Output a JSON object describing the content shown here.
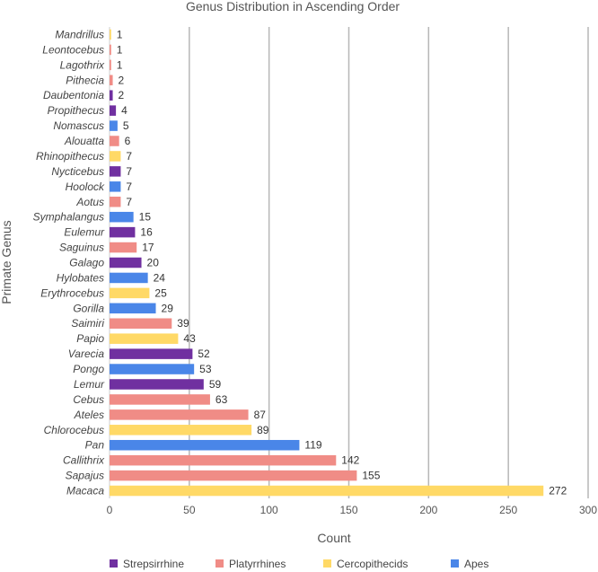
{
  "chart_data": {
    "type": "bar",
    "orientation": "horizontal",
    "title": "Genus Distribution in Ascending Order",
    "xlabel": "Count",
    "ylabel": "Primate Genus",
    "xlim": [
      0,
      300
    ],
    "xticks": [
      0,
      50,
      100,
      150,
      200,
      250,
      300
    ],
    "grid": "vertical",
    "legend_position": "bottom",
    "groups": [
      {
        "name": "Strepsirrhine",
        "color": "#7030a0"
      },
      {
        "name": "Platyrrhines",
        "color": "#f08c86"
      },
      {
        "name": "Cercopithecids",
        "color": "#ffd966"
      },
      {
        "name": "Apes",
        "color": "#4a86e8"
      }
    ],
    "bars": [
      {
        "label": "Mandrillus",
        "value": 1,
        "group": "Cercopithecids"
      },
      {
        "label": "Leontocebus",
        "value": 1,
        "group": "Platyrrhines"
      },
      {
        "label": "Lagothrix",
        "value": 1,
        "group": "Platyrrhines"
      },
      {
        "label": "Pithecia",
        "value": 2,
        "group": "Platyrrhines"
      },
      {
        "label": "Daubentonia",
        "value": 2,
        "group": "Strepsirrhine"
      },
      {
        "label": "Propithecus",
        "value": 4,
        "group": "Strepsirrhine"
      },
      {
        "label": "Nomascus",
        "value": 5,
        "group": "Apes"
      },
      {
        "label": "Alouatta",
        "value": 6,
        "group": "Platyrrhines"
      },
      {
        "label": "Rhinopithecus",
        "value": 7,
        "group": "Cercopithecids"
      },
      {
        "label": "Nycticebus",
        "value": 7,
        "group": "Strepsirrhine"
      },
      {
        "label": "Hoolock",
        "value": 7,
        "group": "Apes"
      },
      {
        "label": "Aotus",
        "value": 7,
        "group": "Platyrrhines"
      },
      {
        "label": "Symphalangus",
        "value": 15,
        "group": "Apes"
      },
      {
        "label": "Eulemur",
        "value": 16,
        "group": "Strepsirrhine"
      },
      {
        "label": "Saguinus",
        "value": 17,
        "group": "Platyrrhines"
      },
      {
        "label": "Galago",
        "value": 20,
        "group": "Strepsirrhine"
      },
      {
        "label": "Hylobates",
        "value": 24,
        "group": "Apes"
      },
      {
        "label": "Erythrocebus",
        "value": 25,
        "group": "Cercopithecids"
      },
      {
        "label": "Gorilla",
        "value": 29,
        "group": "Apes"
      },
      {
        "label": "Saimiri",
        "value": 39,
        "group": "Platyrrhines"
      },
      {
        "label": "Papio",
        "value": 43,
        "group": "Cercopithecids"
      },
      {
        "label": "Varecia",
        "value": 52,
        "group": "Strepsirrhine"
      },
      {
        "label": "Pongo",
        "value": 53,
        "group": "Apes"
      },
      {
        "label": "Lemur",
        "value": 59,
        "group": "Strepsirrhine"
      },
      {
        "label": "Cebus",
        "value": 63,
        "group": "Platyrrhines"
      },
      {
        "label": "Ateles",
        "value": 87,
        "group": "Platyrrhines"
      },
      {
        "label": "Chlorocebus",
        "value": 89,
        "group": "Cercopithecids"
      },
      {
        "label": "Pan",
        "value": 119,
        "group": "Apes"
      },
      {
        "label": "Callithrix",
        "value": 142,
        "group": "Platyrrhines"
      },
      {
        "label": "Sapajus",
        "value": 155,
        "group": "Platyrrhines"
      },
      {
        "label": "Macaca",
        "value": 272,
        "group": "Cercopithecids"
      }
    ]
  }
}
